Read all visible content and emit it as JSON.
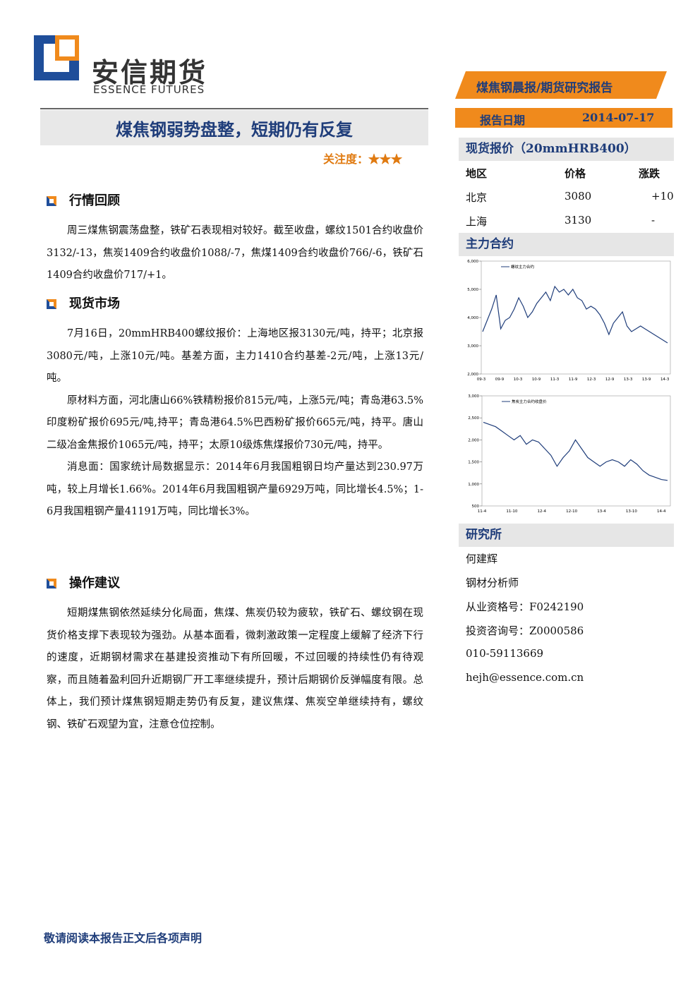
{
  "header": {
    "logo_cn": "安信期货",
    "logo_en": "ESSENCE FUTURES",
    "tag": "煤焦钢晨报/期货研究报告",
    "date_label": "报告日期",
    "date": "2014-07-17"
  },
  "title": "煤焦钢弱势盘整，短期仍有反复",
  "attention": "关注度：",
  "stars": "★★★",
  "sections": [
    {
      "heading": "行情回顾",
      "paragraphs": [
        "周三煤焦钢震荡盘整，铁矿石表现相对较好。截至收盘，螺纹1501合约收盘价3132/-13，焦炭1409合约收盘价1088/-7，焦煤1409合约收盘价766/-6，铁矿石1409合约收盘价717/+1。"
      ]
    },
    {
      "heading": "现货市场",
      "paragraphs": [
        "7月16日，20mmHRB400螺纹报价：上海地区报3130元/吨，持平；北京报3080元/吨，上涨10元/吨。基差方面，主力1410合约基差-2元/吨，上涨13元/吨。",
        "原材料方面，河北唐山66%铁精粉报价815元/吨，上涨5元/吨；青岛港63.5%印度粉矿报价695元/吨,持平；青岛港64.5%巴西粉矿报价665元/吨，持平。唐山二级冶金焦报价1065元/吨，持平；太原10级炼焦煤报价730元/吨，持平。",
        "消息面：国家统计局数据显示：2014年6月我国粗钢日均产量达到230.97万吨，较上月增长1.66%。2014年6月我国粗钢产量6929万吨，同比增长4.5%；1-6月我国粗钢产量41191万吨，同比增长3%。"
      ]
    },
    {
      "heading": "操作建议",
      "paragraphs": [
        "短期煤焦钢依然延续分化局面，焦煤、焦炭仍较为疲软，铁矿石、螺纹钢在现货价格支撑下表现较为强劲。从基本面看，微刺激政策一定程度上缓解了经济下行的速度，近期钢材需求在基建投资推动下有所回暖，不过回暖的持续性仍有待观察，而且随着盈利回升近期钢厂开工率继续提升，预计后期钢价反弹幅度有限。总体上，我们预计煤焦钢短期走势仍有反复，建议焦煤、焦炭空单继续持有，螺纹钢、铁矿石观望为宜，注意仓位控制。"
      ]
    }
  ],
  "spot": {
    "heading": "现货报价（20mmHRB400）",
    "columns": [
      "地区",
      "价格",
      "涨跌"
    ],
    "rows": [
      [
        "北京",
        "3080",
        "+10"
      ],
      [
        "上海",
        "3130",
        "-"
      ]
    ]
  },
  "main_contract": "主力合约",
  "chart_data": [
    {
      "type": "line",
      "series": [
        {
          "name": "螺纹主力合约",
          "color": "#1f3d7a",
          "values": [
            3500,
            3900,
            4300,
            4800,
            3600,
            3900,
            4000,
            4300,
            4700,
            4400,
            4000,
            4200,
            4500,
            4700,
            4900,
            4600,
            5100,
            4900,
            5000,
            4800,
            5000,
            4700,
            4600,
            4300,
            4400,
            4300,
            4100,
            3800,
            3400,
            3800,
            4000,
            4200,
            3700,
            3500,
            3600,
            3700,
            3600,
            3500,
            3400,
            3300,
            3200,
            3100
          ]
        }
      ],
      "ylim": [
        2000,
        6000
      ],
      "yticks": [
        {
          "value": 2000,
          "label": "2,000"
        },
        {
          "value": 3000,
          "label": "3,000"
        },
        {
          "value": 4000,
          "label": "4,000"
        },
        {
          "value": 5000,
          "label": "5,000"
        },
        {
          "value": 6000,
          "label": "6,000"
        }
      ],
      "x_labels": [
        "09-3",
        "09-9",
        "10-3",
        "10-9",
        "11-3",
        "11-9",
        "12-3",
        "12-9",
        "13-3",
        "13-9",
        "14-3"
      ]
    },
    {
      "type": "line",
      "series": [
        {
          "name": "焦炭主力合约收盘价",
          "color": "#1f3d7a",
          "values": [
            2400,
            2350,
            2300,
            2200,
            2100,
            2000,
            2100,
            1900,
            2000,
            1950,
            1800,
            1650,
            1400,
            1600,
            1750,
            2000,
            1800,
            1600,
            1500,
            1400,
            1500,
            1550,
            1500,
            1400,
            1550,
            1450,
            1300,
            1200,
            1150,
            1100,
            1080
          ]
        }
      ],
      "ylim": [
        500,
        3000
      ],
      "yticks": [
        500,
        {
          "value": 1000,
          "label": "1,000"
        },
        {
          "value": 1500,
          "label": "1,500"
        },
        {
          "value": 2000,
          "label": "2,000"
        },
        {
          "value": 2500,
          "label": "2,500"
        },
        {
          "value": 3000,
          "label": "3,000"
        }
      ],
      "x_labels": [
        "11-4",
        "11-10",
        "12-4",
        "12-10",
        "13-4",
        "13-10",
        "14-4"
      ]
    }
  ],
  "research": {
    "heading": "研究所",
    "lines": [
      "何建辉",
      "钢材分析师",
      "从业资格号：F0242190",
      "投资咨询号：Z0000586",
      "010-59113669",
      "hejh@essence.com.cn"
    ]
  },
  "footer": "敬请阅读本报告正文后各项声明"
}
